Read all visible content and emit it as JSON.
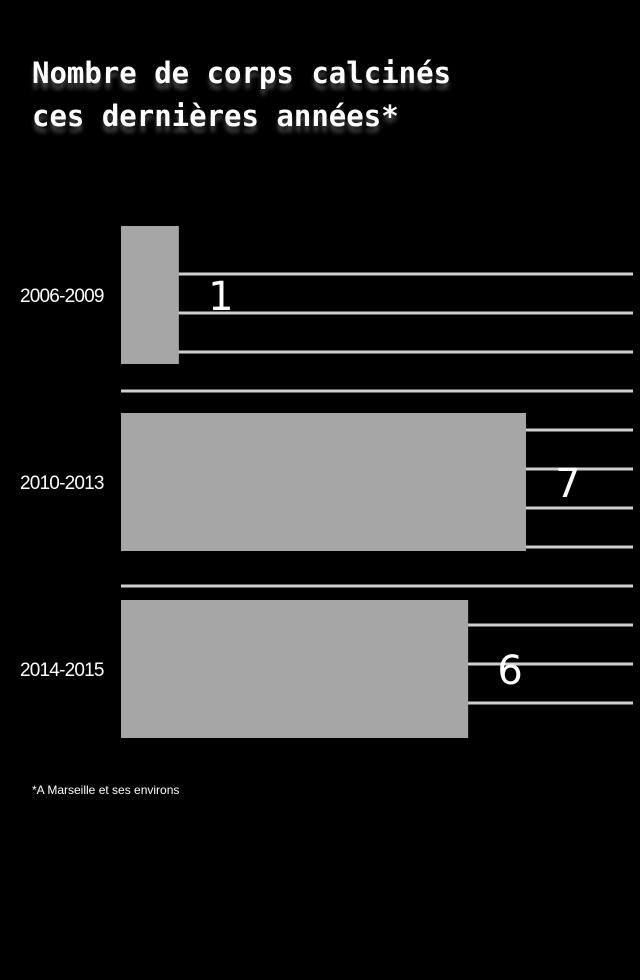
{
  "chart_data": {
    "type": "bar",
    "orientation": "horizontal",
    "title_lines": [
      "Nombre de corps calcinés",
      "ces dernières années*"
    ],
    "categories": [
      "2006-2009",
      "2010-2013",
      "2014-2015"
    ],
    "values": [
      1,
      7,
      6
    ],
    "xlim": [
      0,
      7
    ],
    "bar_color": "#a6a6a6",
    "grid_color": "#cfcfcf",
    "background": "#000000",
    "footnote": "*A Marseille et ses environs"
  }
}
